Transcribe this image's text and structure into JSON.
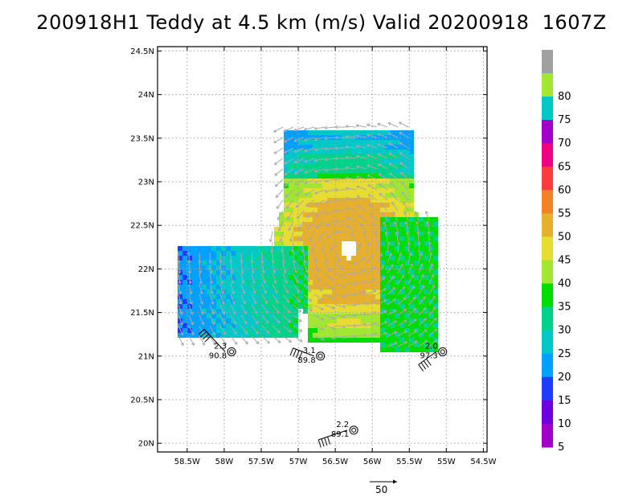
{
  "title": "200918H1 Teddy at 4.5 km (m/s) Valid 20200918  1607Z",
  "map": {
    "lon_range": [
      -58.9,
      -54.45
    ],
    "lat_range": [
      19.9,
      24.55
    ],
    "lat_ticks": [
      {
        "value": 24.5,
        "label": "24.5N"
      },
      {
        "value": 24.0,
        "label": "24N"
      },
      {
        "value": 23.5,
        "label": "23.5N"
      },
      {
        "value": 23.0,
        "label": "23N"
      },
      {
        "value": 22.5,
        "label": "22.5N"
      },
      {
        "value": 22.0,
        "label": "22N"
      },
      {
        "value": 21.5,
        "label": "21.5N"
      },
      {
        "value": 21.0,
        "label": "21N"
      },
      {
        "value": 20.5,
        "label": "20.5N"
      },
      {
        "value": 20.0,
        "label": "20N"
      }
    ],
    "lon_ticks": [
      {
        "value": -58.5,
        "label": "58.5W"
      },
      {
        "value": -58.0,
        "label": "58W"
      },
      {
        "value": -57.5,
        "label": "57.5W"
      },
      {
        "value": -57.0,
        "label": "57W"
      },
      {
        "value": -56.5,
        "label": "56.5W"
      },
      {
        "value": -56.0,
        "label": "56W"
      },
      {
        "value": -55.5,
        "label": "55.5W"
      },
      {
        "value": -55.0,
        "label": "55W"
      },
      {
        "value": -54.5,
        "label": "54.5W"
      }
    ],
    "grid": true,
    "storm_center": {
      "lon": -56.35,
      "lat": 22.25
    }
  },
  "stations": [
    {
      "lon": -57.9,
      "lat": 21.05,
      "top": "2.3",
      "bottom": "90.8"
    },
    {
      "lon": -56.7,
      "lat": 21.0,
      "top": "3.1",
      "bottom": "89.8"
    },
    {
      "lon": -55.05,
      "lat": 21.05,
      "top": "2.0",
      "bottom": "97.3"
    },
    {
      "lon": -56.25,
      "lat": 20.15,
      "top": "2.2",
      "bottom": "89.1"
    }
  ],
  "colorbar": {
    "levels": [
      {
        "label": "",
        "color": "#a0a0a0"
      },
      {
        "label": "80",
        "color": "#a0e632"
      },
      {
        "label": "75",
        "color": "#00c8c8"
      },
      {
        "label": "70",
        "color": "#a000c8"
      },
      {
        "label": "65",
        "color": "#f00082"
      },
      {
        "label": "60",
        "color": "#fa3c3c"
      },
      {
        "label": "55",
        "color": "#f08228"
      },
      {
        "label": "50",
        "color": "#e6af2d"
      },
      {
        "label": "45",
        "color": "#e6dc32"
      },
      {
        "label": "40",
        "color": "#a0e632"
      },
      {
        "label": "35",
        "color": "#00dc00"
      },
      {
        "label": "30",
        "color": "#00d28c"
      },
      {
        "label": "25",
        "color": "#00c8c8"
      },
      {
        "label": "20",
        "color": "#00a0ff"
      },
      {
        "label": "15",
        "color": "#1e3cff"
      },
      {
        "label": "10",
        "color": "#6e00dc"
      },
      {
        "label": "5",
        "color": "#a000c8"
      }
    ]
  },
  "reference_vector": {
    "label": "50"
  }
}
